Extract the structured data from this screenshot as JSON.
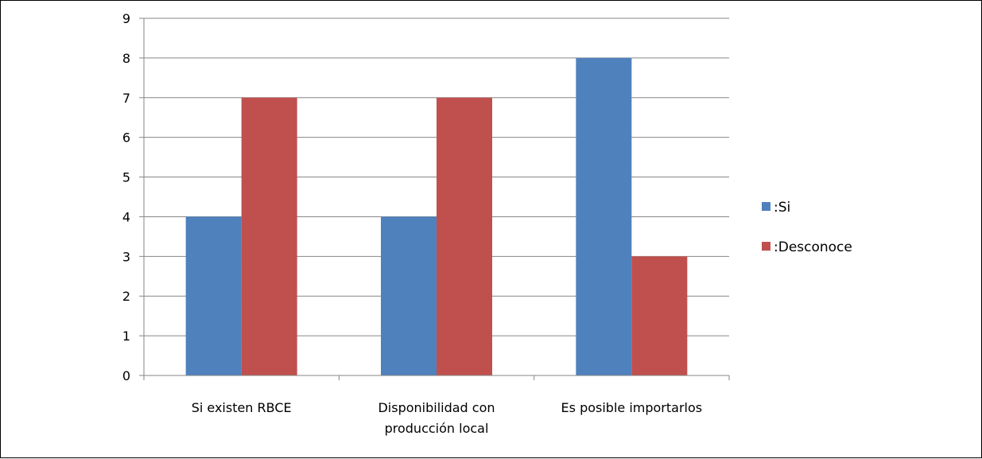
{
  "chart_data": {
    "type": "bar",
    "categories": [
      [
        "Si existen RBCE"
      ],
      [
        "Disponibilidad con",
        "producción local"
      ],
      [
        "Es posible importarlos"
      ]
    ],
    "series": [
      {
        "name": ":Si",
        "color": "#4f81bd",
        "values": [
          4,
          4,
          8
        ]
      },
      {
        "name": ":Desconoce",
        "color": "#c0504d",
        "values": [
          7,
          7,
          3
        ]
      }
    ],
    "ylim": [
      0,
      9
    ],
    "yticks": [
      0,
      1,
      2,
      3,
      4,
      5,
      6,
      7,
      8,
      9
    ],
    "grid": true,
    "legend": "right"
  }
}
